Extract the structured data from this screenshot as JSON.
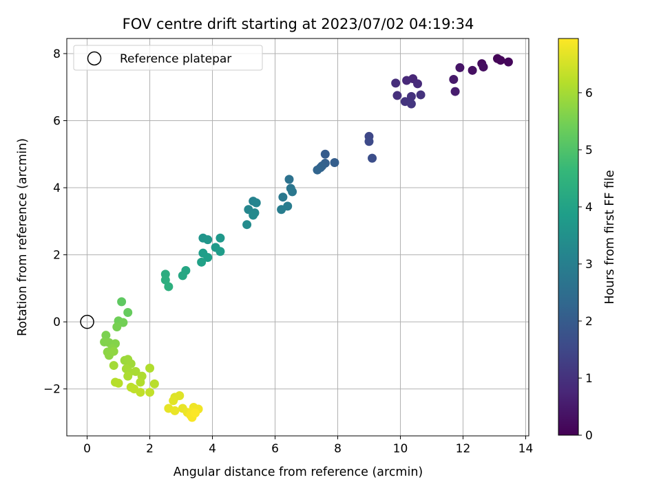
{
  "chart_data": {
    "type": "scatter",
    "title": "FOV centre drift starting at 2023/07/02 04:19:34",
    "xlabel": "Angular distance from reference (arcmin)",
    "ylabel": "Rotation from reference (arcmin)",
    "xlim": [
      -0.65,
      14.1
    ],
    "ylim": [
      -3.4,
      8.45
    ],
    "xticks": [
      0,
      2,
      4,
      6,
      8,
      10,
      12,
      14
    ],
    "yticks": [
      -2,
      0,
      2,
      4,
      6,
      8
    ],
    "xtick_labels": [
      "0",
      "2",
      "4",
      "6",
      "8",
      "10",
      "12",
      "14"
    ],
    "ytick_labels": [
      "−2",
      "0",
      "2",
      "4",
      "6",
      "8"
    ],
    "grid": true,
    "legend": {
      "position": "top-left",
      "label": "Reference platepar"
    },
    "reference_point": {
      "x": 0,
      "y": 0
    },
    "colorbar": {
      "label": "Hours from first FF file",
      "colormap": "viridis",
      "range": [
        0,
        6.95
      ],
      "ticks": [
        0,
        1,
        2,
        3,
        4,
        5,
        6
      ],
      "tick_labels": [
        "0",
        "1",
        "2",
        "3",
        "4",
        "5",
        "6"
      ]
    },
    "points": [
      {
        "x": 13.1,
        "y": 7.85,
        "t": 0.05
      },
      {
        "x": 13.2,
        "y": 7.8,
        "t": 0.1
      },
      {
        "x": 13.45,
        "y": 7.75,
        "t": 0.12
      },
      {
        "x": 12.6,
        "y": 7.7,
        "t": 0.2
      },
      {
        "x": 12.65,
        "y": 7.6,
        "t": 0.25
      },
      {
        "x": 12.3,
        "y": 7.5,
        "t": 0.3
      },
      {
        "x": 11.9,
        "y": 7.58,
        "t": 0.4
      },
      {
        "x": 11.7,
        "y": 7.23,
        "t": 0.5
      },
      {
        "x": 11.75,
        "y": 6.87,
        "t": 0.55
      },
      {
        "x": 10.4,
        "y": 7.25,
        "t": 0.75
      },
      {
        "x": 10.2,
        "y": 7.2,
        "t": 0.8
      },
      {
        "x": 10.55,
        "y": 7.1,
        "t": 0.85
      },
      {
        "x": 9.85,
        "y": 7.12,
        "t": 0.9
      },
      {
        "x": 9.9,
        "y": 6.75,
        "t": 0.95
      },
      {
        "x": 10.35,
        "y": 6.72,
        "t": 1.0
      },
      {
        "x": 10.65,
        "y": 6.77,
        "t": 1.02
      },
      {
        "x": 10.15,
        "y": 6.57,
        "t": 1.05
      },
      {
        "x": 10.35,
        "y": 6.5,
        "t": 1.1
      },
      {
        "x": 9.0,
        "y": 5.53,
        "t": 1.5
      },
      {
        "x": 9.0,
        "y": 5.38,
        "t": 1.55
      },
      {
        "x": 9.1,
        "y": 4.88,
        "t": 1.65
      },
      {
        "x": 7.6,
        "y": 5.0,
        "t": 2.0
      },
      {
        "x": 7.9,
        "y": 4.75,
        "t": 2.05
      },
      {
        "x": 7.6,
        "y": 4.73,
        "t": 2.1
      },
      {
        "x": 7.5,
        "y": 4.65,
        "t": 2.15
      },
      {
        "x": 7.45,
        "y": 4.6,
        "t": 2.2
      },
      {
        "x": 7.35,
        "y": 4.53,
        "t": 2.25
      },
      {
        "x": 6.45,
        "y": 4.25,
        "t": 2.6
      },
      {
        "x": 6.5,
        "y": 3.98,
        "t": 2.7
      },
      {
        "x": 6.55,
        "y": 3.88,
        "t": 2.75
      },
      {
        "x": 6.25,
        "y": 3.72,
        "t": 2.8
      },
      {
        "x": 6.4,
        "y": 3.45,
        "t": 2.9
      },
      {
        "x": 6.2,
        "y": 3.35,
        "t": 2.95
      },
      {
        "x": 5.3,
        "y": 3.6,
        "t": 3.1
      },
      {
        "x": 5.4,
        "y": 3.55,
        "t": 3.15
      },
      {
        "x": 5.15,
        "y": 3.35,
        "t": 3.2
      },
      {
        "x": 5.35,
        "y": 3.25,
        "t": 3.25
      },
      {
        "x": 5.3,
        "y": 3.18,
        "t": 3.3
      },
      {
        "x": 5.1,
        "y": 2.9,
        "t": 3.35
      },
      {
        "x": 3.7,
        "y": 2.5,
        "t": 3.6
      },
      {
        "x": 3.85,
        "y": 2.45,
        "t": 3.65
      },
      {
        "x": 4.25,
        "y": 2.5,
        "t": 3.7
      },
      {
        "x": 4.1,
        "y": 2.22,
        "t": 3.75
      },
      {
        "x": 4.25,
        "y": 2.1,
        "t": 3.8
      },
      {
        "x": 3.7,
        "y": 2.05,
        "t": 3.85
      },
      {
        "x": 3.85,
        "y": 1.92,
        "t": 3.9
      },
      {
        "x": 3.65,
        "y": 1.78,
        "t": 3.95
      },
      {
        "x": 3.15,
        "y": 1.53,
        "t": 4.1
      },
      {
        "x": 3.05,
        "y": 1.38,
        "t": 4.15
      },
      {
        "x": 2.5,
        "y": 1.42,
        "t": 4.3
      },
      {
        "x": 2.5,
        "y": 1.25,
        "t": 4.35
      },
      {
        "x": 2.6,
        "y": 1.05,
        "t": 4.4
      },
      {
        "x": 1.1,
        "y": 0.6,
        "t": 5.2
      },
      {
        "x": 1.3,
        "y": 0.28,
        "t": 5.3
      },
      {
        "x": 1.0,
        "y": 0.03,
        "t": 5.4
      },
      {
        "x": 1.15,
        "y": -0.02,
        "t": 5.45
      },
      {
        "x": 0.95,
        "y": -0.15,
        "t": 5.5
      },
      {
        "x": 0.6,
        "y": -0.4,
        "t": 5.55
      },
      {
        "x": 0.55,
        "y": -0.6,
        "t": 5.6
      },
      {
        "x": 0.7,
        "y": -0.62,
        "t": 5.62
      },
      {
        "x": 0.9,
        "y": -0.65,
        "t": 5.65
      },
      {
        "x": 0.8,
        "y": -0.8,
        "t": 5.7
      },
      {
        "x": 0.65,
        "y": -0.9,
        "t": 5.72
      },
      {
        "x": 0.7,
        "y": -1.0,
        "t": 5.75
      },
      {
        "x": 0.85,
        "y": -0.88,
        "t": 5.78
      },
      {
        "x": 1.2,
        "y": -1.15,
        "t": 5.9
      },
      {
        "x": 1.3,
        "y": -1.12,
        "t": 5.92
      },
      {
        "x": 1.4,
        "y": -1.25,
        "t": 5.95
      },
      {
        "x": 0.85,
        "y": -1.3,
        "t": 5.98
      },
      {
        "x": 1.25,
        "y": -1.4,
        "t": 6.0
      },
      {
        "x": 1.35,
        "y": -1.5,
        "t": 6.02
      },
      {
        "x": 1.55,
        "y": -1.48,
        "t": 6.05
      },
      {
        "x": 1.3,
        "y": -1.62,
        "t": 6.08
      },
      {
        "x": 1.75,
        "y": -1.62,
        "t": 6.1
      },
      {
        "x": 2.0,
        "y": -1.38,
        "t": 6.12
      },
      {
        "x": 1.7,
        "y": -1.8,
        "t": 6.15
      },
      {
        "x": 0.9,
        "y": -1.8,
        "t": 6.18
      },
      {
        "x": 1.0,
        "y": -1.83,
        "t": 6.2
      },
      {
        "x": 2.15,
        "y": -1.85,
        "t": 6.22
      },
      {
        "x": 1.4,
        "y": -1.95,
        "t": 6.25
      },
      {
        "x": 1.5,
        "y": -2.0,
        "t": 6.28
      },
      {
        "x": 1.7,
        "y": -2.1,
        "t": 6.3
      },
      {
        "x": 2.0,
        "y": -2.1,
        "t": 6.32
      },
      {
        "x": 2.8,
        "y": -2.25,
        "t": 6.6
      },
      {
        "x": 2.95,
        "y": -2.2,
        "t": 6.62
      },
      {
        "x": 2.75,
        "y": -2.35,
        "t": 6.65
      },
      {
        "x": 2.6,
        "y": -2.58,
        "t": 6.7
      },
      {
        "x": 3.05,
        "y": -2.58,
        "t": 6.72
      },
      {
        "x": 2.8,
        "y": -2.65,
        "t": 6.75
      },
      {
        "x": 3.2,
        "y": -2.7,
        "t": 6.78
      },
      {
        "x": 3.4,
        "y": -2.55,
        "t": 6.8
      },
      {
        "x": 3.55,
        "y": -2.6,
        "t": 6.82
      },
      {
        "x": 3.35,
        "y": -2.68,
        "t": 6.85
      },
      {
        "x": 3.3,
        "y": -2.78,
        "t": 6.88
      },
      {
        "x": 3.35,
        "y": -2.85,
        "t": 6.9
      },
      {
        "x": 3.45,
        "y": -2.72,
        "t": 6.93
      }
    ]
  }
}
